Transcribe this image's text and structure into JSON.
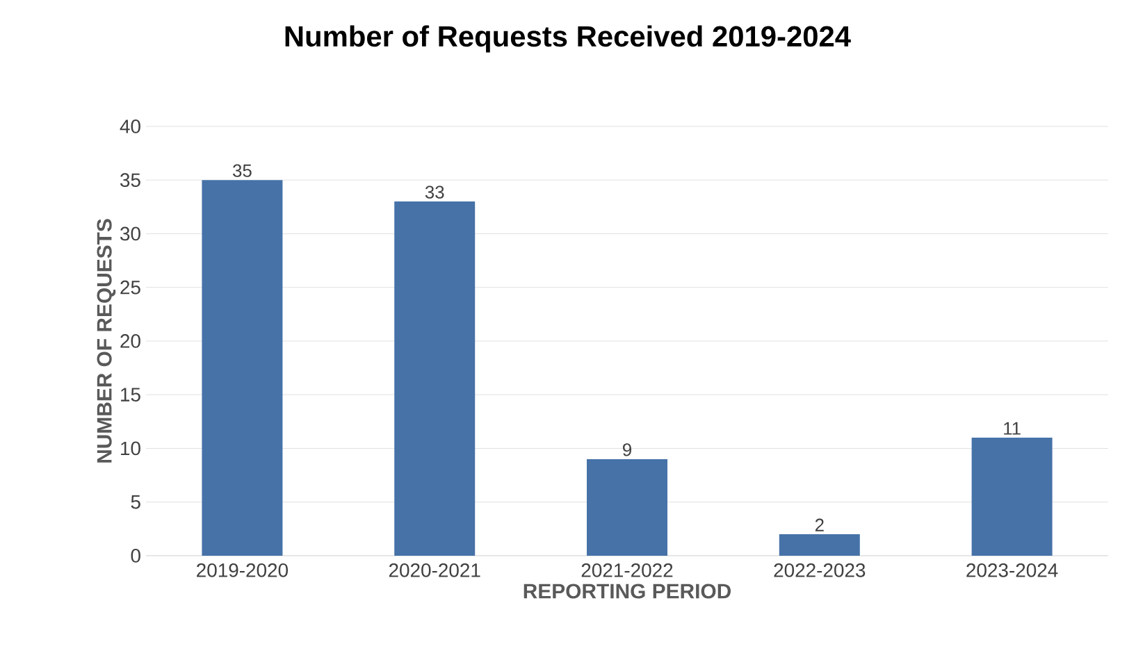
{
  "chart_data": {
    "type": "bar",
    "title": "Number of Requests Received 2019-2024",
    "xlabel": "REPORTING PERIOD",
    "ylabel": "NUMBER OF REQUESTS",
    "categories": [
      "2019-2020",
      "2020-2021",
      "2021-2022",
      "2022-2023",
      "2023-2024"
    ],
    "values": [
      35,
      33,
      9,
      2,
      11
    ],
    "color": "#4672a8",
    "ylim": [
      0,
      40
    ],
    "yticks": [
      0,
      5,
      10,
      15,
      20,
      25,
      30,
      35,
      40
    ],
    "grid": "y",
    "data_labels": true
  }
}
